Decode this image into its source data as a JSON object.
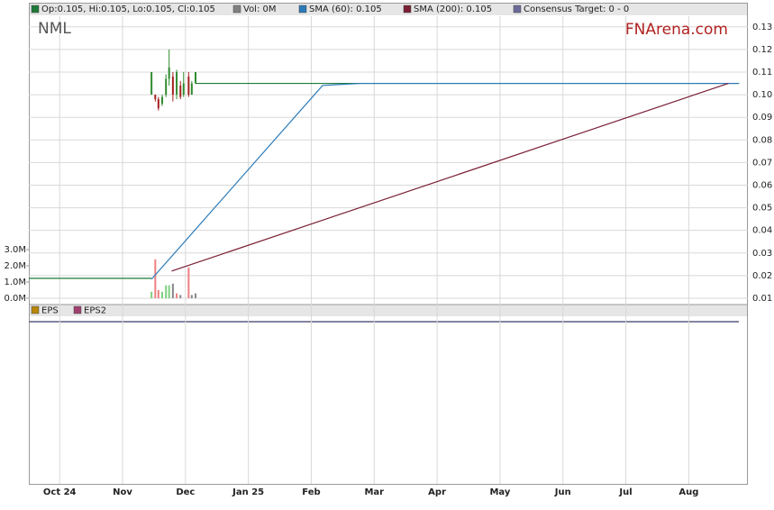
{
  "chart_data": {
    "type": "stock",
    "title": "NML",
    "watermark": "FNArena.com",
    "xlim": [
      -0.49,
      10.94
    ],
    "xticks": [
      {
        "value": 0,
        "label": "Oct 24"
      },
      {
        "value": 1,
        "label": "Nov"
      },
      {
        "value": 2,
        "label": "Dec"
      },
      {
        "value": 3,
        "label": "Jan 25"
      },
      {
        "value": 4,
        "label": "Feb"
      },
      {
        "value": 5,
        "label": "Mar"
      },
      {
        "value": 6,
        "label": "Apr"
      },
      {
        "value": 7,
        "label": "May"
      },
      {
        "value": 8,
        "label": "Jun"
      },
      {
        "value": 9,
        "label": "Jul"
      },
      {
        "value": 10,
        "label": "Aug"
      }
    ],
    "ylim": [
      0.0072,
      0.1347
    ],
    "yticks": [
      0.01,
      0.02,
      0.03,
      0.04,
      0.05,
      0.06,
      0.07,
      0.08,
      0.09,
      {
        "value": 0.1,
        "label": "0.10"
      },
      0.11,
      0.12,
      0.13
    ],
    "y2lim": [
      -0.39,
      17.39
    ],
    "y2ticks": [
      {
        "value": 0,
        "label": "0.0M"
      },
      {
        "value": 1,
        "label": "1.0M"
      },
      {
        "value": 2,
        "label": "2.0M"
      },
      {
        "value": 3,
        "label": "3.0M"
      }
    ],
    "grid": true,
    "candles": {
      "x": [
        1.46,
        1.52,
        1.57,
        1.63,
        1.69,
        1.74,
        1.8,
        1.86,
        1.92,
        1.97,
        2.05,
        2.1,
        2.16
      ],
      "open": [
        0.1,
        0.1,
        0.098,
        0.096,
        0.1,
        0.107,
        0.108,
        0.1,
        0.104,
        0.1,
        0.108,
        0.1,
        0.105
      ],
      "high": [
        0.11,
        0.1,
        0.099,
        0.1,
        0.109,
        0.12,
        0.11,
        0.111,
        0.106,
        0.11,
        0.11,
        0.106,
        0.11
      ],
      "low": [
        0.1,
        0.097,
        0.093,
        0.095,
        0.099,
        0.104,
        0.097,
        0.098,
        0.098,
        0.099,
        0.099,
        0.1,
        0.105
      ],
      "close": [
        0.11,
        0.098,
        0.094,
        0.099,
        0.107,
        0.112,
        0.1,
        0.11,
        0.099,
        0.105,
        0.1,
        0.105,
        0.11
      ],
      "up_color": "#2e8b2e",
      "down_color": "#a52020"
    },
    "series": [
      {
        "name": "Op:0.105, Hi:0.105, Lo:0.105, Cl:0.105",
        "color": "#1f7a3a",
        "kind": "line",
        "x": [
          -0.49,
          1.46,
          1.8,
          2.16,
          10.8
        ],
        "values": [
          0.0188,
          0.0188,
          null,
          0.105,
          0.105
        ]
      },
      {
        "name": "Vol: 0M",
        "color": "#808080",
        "kind": "bar",
        "axis": "y2",
        "x": [
          1.46,
          1.52,
          1.57,
          1.63,
          1.69,
          1.74,
          1.8,
          1.86,
          1.92,
          2.05,
          2.1,
          2.16
        ],
        "values": [
          0.4,
          2.4,
          0.5,
          0.4,
          0.8,
          0.8,
          0.9,
          0.3,
          0.2,
          1.9,
          0.2,
          0.3
        ],
        "colors": [
          "#7fd07f",
          "#f08080",
          "#f08080",
          "#7fd07f",
          "#7fd07f",
          "#7fd07f",
          "#888888",
          "#f08080",
          "#888888",
          "#f08080",
          "#888888",
          "#888888"
        ]
      },
      {
        "name": "SMA (60): 0.105",
        "color": "#2a7ab8",
        "kind": "line",
        "x": [
          1.46,
          4.18,
          4.79,
          10.8
        ],
        "values": [
          0.0184,
          0.1041,
          0.105,
          0.105
        ]
      },
      {
        "name": "SMA (200): 0.105",
        "color": "#7a1f35",
        "kind": "line",
        "x": [
          1.78,
          10.63
        ],
        "values": [
          0.022,
          0.105
        ]
      },
      {
        "name": "Consensus Target: 0 - 0",
        "color": "#6b6b9a",
        "kind": "line",
        "x": [],
        "values": []
      }
    ],
    "eps_panel": {
      "series": [
        {
          "name": "EPS",
          "color": "#b8860b"
        },
        {
          "name": "EPS2",
          "color": "#a0406e"
        }
      ]
    }
  }
}
